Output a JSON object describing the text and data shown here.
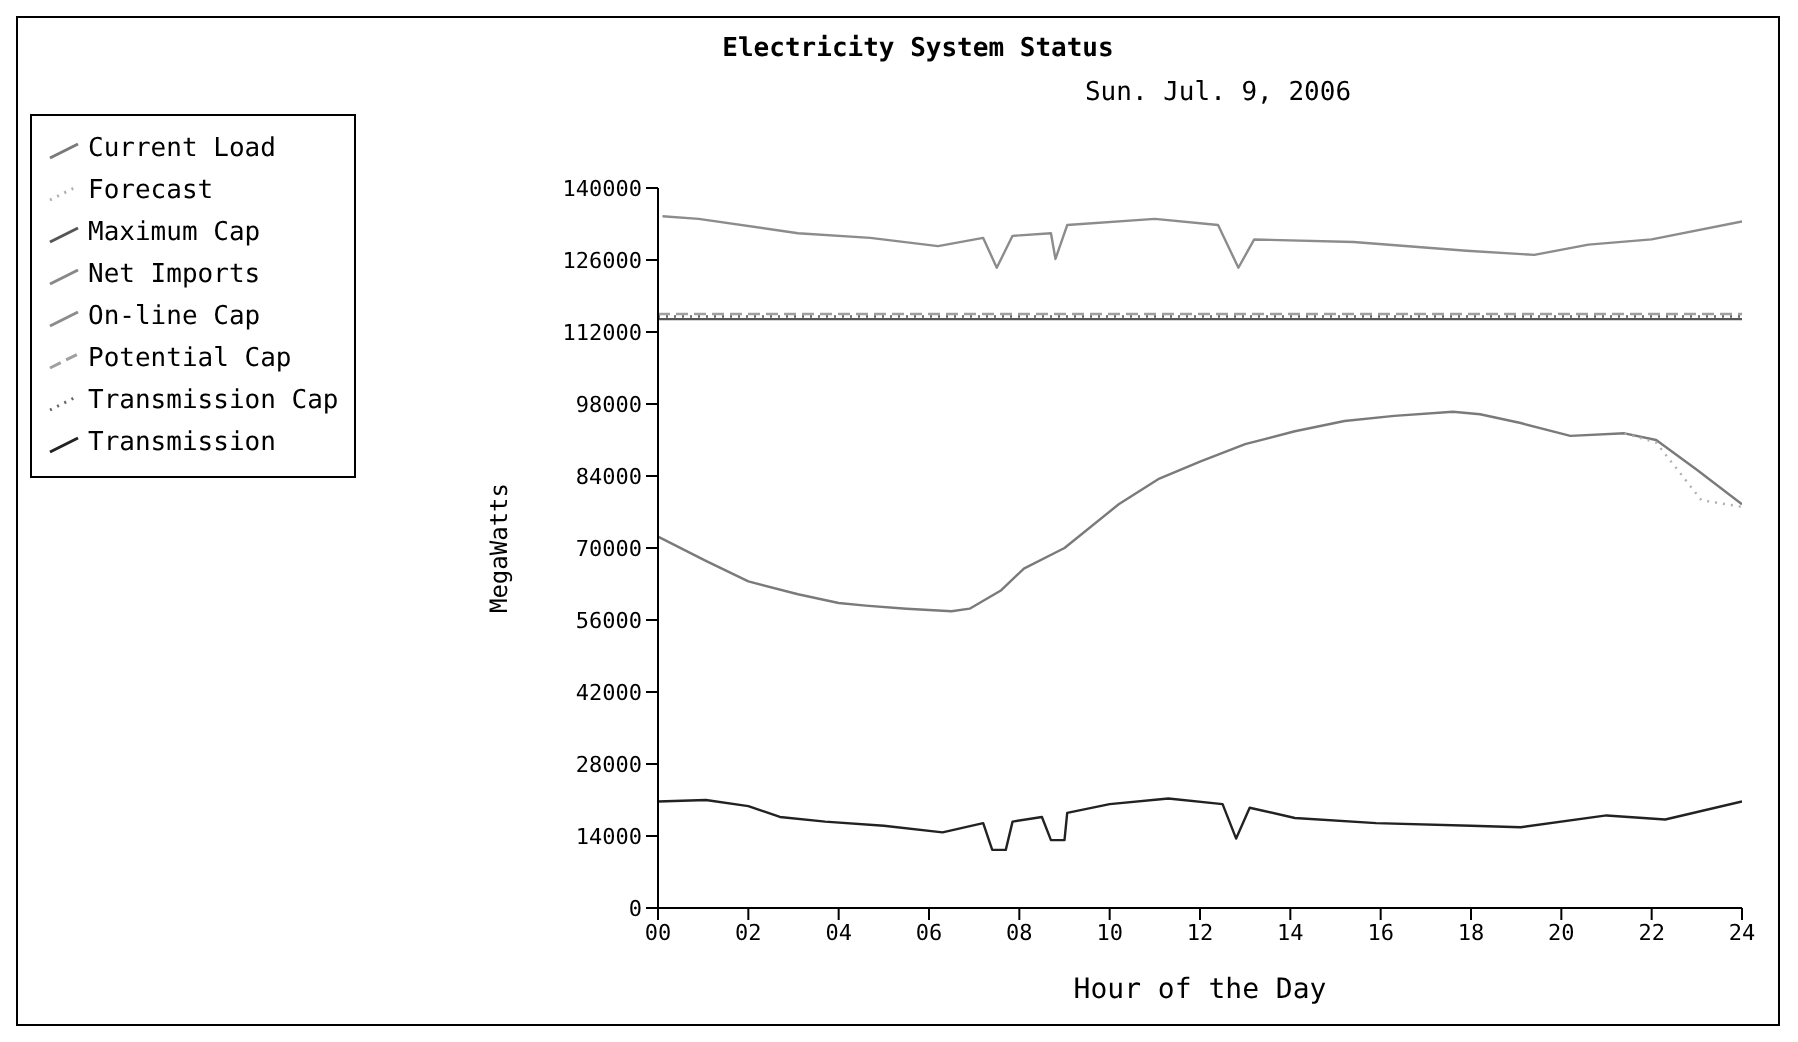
{
  "chart_data": {
    "type": "line",
    "title": "Electricity System Status",
    "subtitle": "Sun. Jul. 9, 2006",
    "xlabel": "Hour of the Day",
    "ylabel": "MegaWatts",
    "xlim": [
      0,
      24
    ],
    "xticks": [
      {
        "value": 0,
        "label": "00"
      },
      {
        "value": 2,
        "label": "02"
      },
      {
        "value": 4,
        "label": "04"
      },
      {
        "value": 6,
        "label": "06"
      },
      {
        "value": 8,
        "label": "08"
      },
      10,
      12,
      14,
      16,
      18,
      20,
      22,
      24
    ],
    "ylim": [
      0,
      140000
    ],
    "yticks": [
      0,
      14000,
      28000,
      42000,
      56000,
      70000,
      84000,
      98000,
      112000,
      126000,
      140000
    ],
    "legend": "left",
    "marker": "none",
    "series": [
      {
        "name": "Current Load",
        "color": "#7a7a7a",
        "x": [
          0,
          1.06,
          2,
          3.1,
          4,
          4.6,
          5.5,
          6.5,
          6.9,
          7.6,
          8.1,
          9,
          10.2,
          11.1,
          12,
          13,
          14.1,
          15.2,
          16.3,
          17.6,
          18.2,
          19.1,
          20.2,
          21.4,
          22.1,
          23,
          24
        ],
        "values": [
          72200,
          67500,
          63500,
          61000,
          59300,
          58800,
          58200,
          57700,
          58200,
          61800,
          66000,
          70000,
          78500,
          83500,
          86800,
          90200,
          92700,
          94700,
          95700,
          96500,
          96000,
          94300,
          91800,
          92300,
          91000,
          85200,
          78500
        ]
      },
      {
        "name": "Forecast",
        "color": "#b0b0b0",
        "line_style": "dotted",
        "x": [
          21.4,
          22.1,
          23.1,
          24
        ],
        "values": [
          92300,
          90500,
          79300,
          78000
        ]
      },
      {
        "name": "Maximum Cap",
        "color": "#555555",
        "x": [
          0,
          24
        ],
        "values": [
          114500,
          114500
        ]
      },
      {
        "name": "Net Imports",
        "color": "#888888"
      },
      {
        "name": "On-line Cap",
        "color": "#8c8c8c",
        "x": [
          0.1,
          0.9,
          3.1,
          4.7,
          6.2,
          7.2,
          7.5,
          7.85,
          8.7,
          8.8,
          9.06,
          11,
          12.4,
          12.85,
          13.2,
          15.4,
          17.9,
          19.4,
          20.6,
          22,
          24
        ],
        "values": [
          134500,
          134000,
          131200,
          130300,
          128700,
          130300,
          124500,
          130700,
          131200,
          126200,
          132800,
          134000,
          132800,
          124500,
          130000,
          129500,
          127800,
          127000,
          129000,
          130000,
          133500
        ]
      },
      {
        "name": "Potential Cap",
        "color": "#a0a0a0",
        "line_style": "dashed",
        "x": [
          0,
          24
        ],
        "values": [
          115500,
          115500
        ]
      },
      {
        "name": "Transmission Cap",
        "color": "#666666",
        "line_style": "dotted",
        "x": [
          0,
          24
        ],
        "values": [
          115000,
          115000
        ]
      },
      {
        "name": "Transmission",
        "color": "#222222",
        "x": [
          0,
          1.06,
          2,
          2.7,
          3.7,
          5,
          6.3,
          7.2,
          7.4,
          7.7,
          7.85,
          8.5,
          8.7,
          9,
          9.06,
          10,
          11.3,
          12.5,
          12.8,
          13.1,
          14.1,
          15.9,
          18,
          19.1,
          21,
          22.3,
          24
        ],
        "values": [
          20700,
          21000,
          19800,
          17700,
          16800,
          16000,
          14700,
          16500,
          11300,
          11300,
          16800,
          17700,
          13200,
          13200,
          18500,
          20200,
          21300,
          20200,
          13500,
          19500,
          17500,
          16500,
          16000,
          15700,
          18000,
          17200,
          20700
        ]
      }
    ]
  }
}
